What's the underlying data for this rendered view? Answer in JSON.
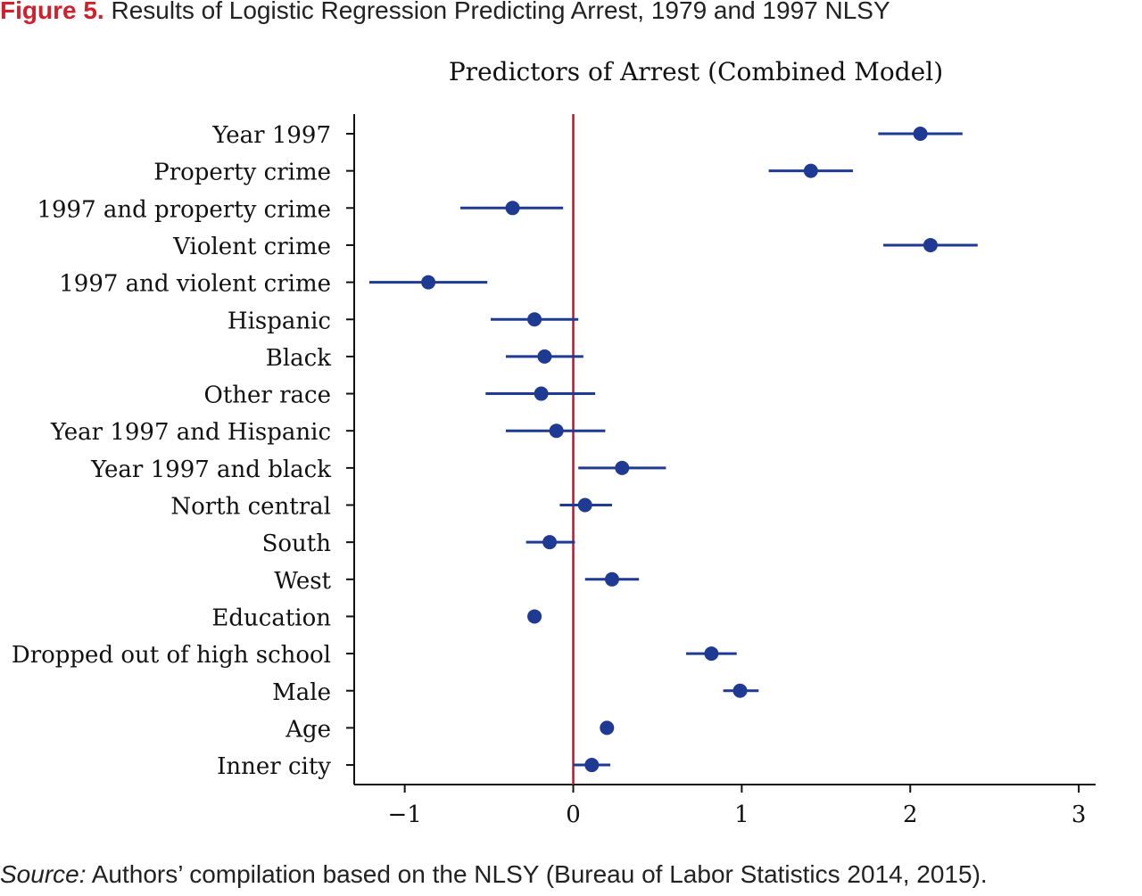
{
  "figure": {
    "label": "Figure 5.",
    "title": "Results of Logistic Regression Predicting Arrest, 1979 and 1997 NLSY"
  },
  "source": {
    "label": "Source:",
    "text": "Authors’ compilation based on the NLSY (Bureau of Labor Statistics 2014, 2015)."
  },
  "chart_data": {
    "type": "scatter",
    "subtype": "coefficient-plot",
    "title": "Predictors of Arrest (Combined Model)",
    "xlabel": "",
    "ylabel": "",
    "xlim": [
      -1.3,
      3.1
    ],
    "xticks": [
      -1,
      0,
      1,
      2,
      3
    ],
    "xtick_labels": [
      "−1",
      "0",
      "1",
      "2",
      "3"
    ],
    "reference_line": 0,
    "colors": {
      "points": "#1f3a93",
      "reference_line": "#c8102e",
      "axis": "#111111"
    },
    "grid": false,
    "legend": "none",
    "categories": [
      "Year 1997",
      "Property crime",
      "1997 and property crime",
      "Violent crime",
      "1997 and violent crime",
      "Hispanic",
      "Black",
      "Other race",
      "Year 1997 and Hispanic",
      "Year 1997 and black",
      "North central",
      "South",
      "West",
      "Education",
      "Dropped out of high school",
      "Male",
      "Age",
      "Inner city"
    ],
    "estimates": [
      2.06,
      1.41,
      -0.36,
      2.12,
      -0.86,
      -0.23,
      -0.17,
      -0.19,
      -0.1,
      0.29,
      0.07,
      -0.14,
      0.23,
      -0.23,
      0.82,
      0.99,
      0.2,
      0.11
    ],
    "ci_low": [
      1.81,
      1.16,
      -0.67,
      1.84,
      -1.21,
      -0.49,
      -0.4,
      -0.52,
      -0.4,
      0.03,
      -0.08,
      -0.28,
      0.07,
      -0.23,
      0.67,
      0.89,
      0.2,
      0.0
    ],
    "ci_high": [
      2.31,
      1.66,
      -0.06,
      2.4,
      -0.51,
      0.03,
      0.06,
      0.13,
      0.19,
      0.55,
      0.23,
      0.01,
      0.39,
      -0.23,
      0.97,
      1.1,
      0.2,
      0.22
    ]
  }
}
